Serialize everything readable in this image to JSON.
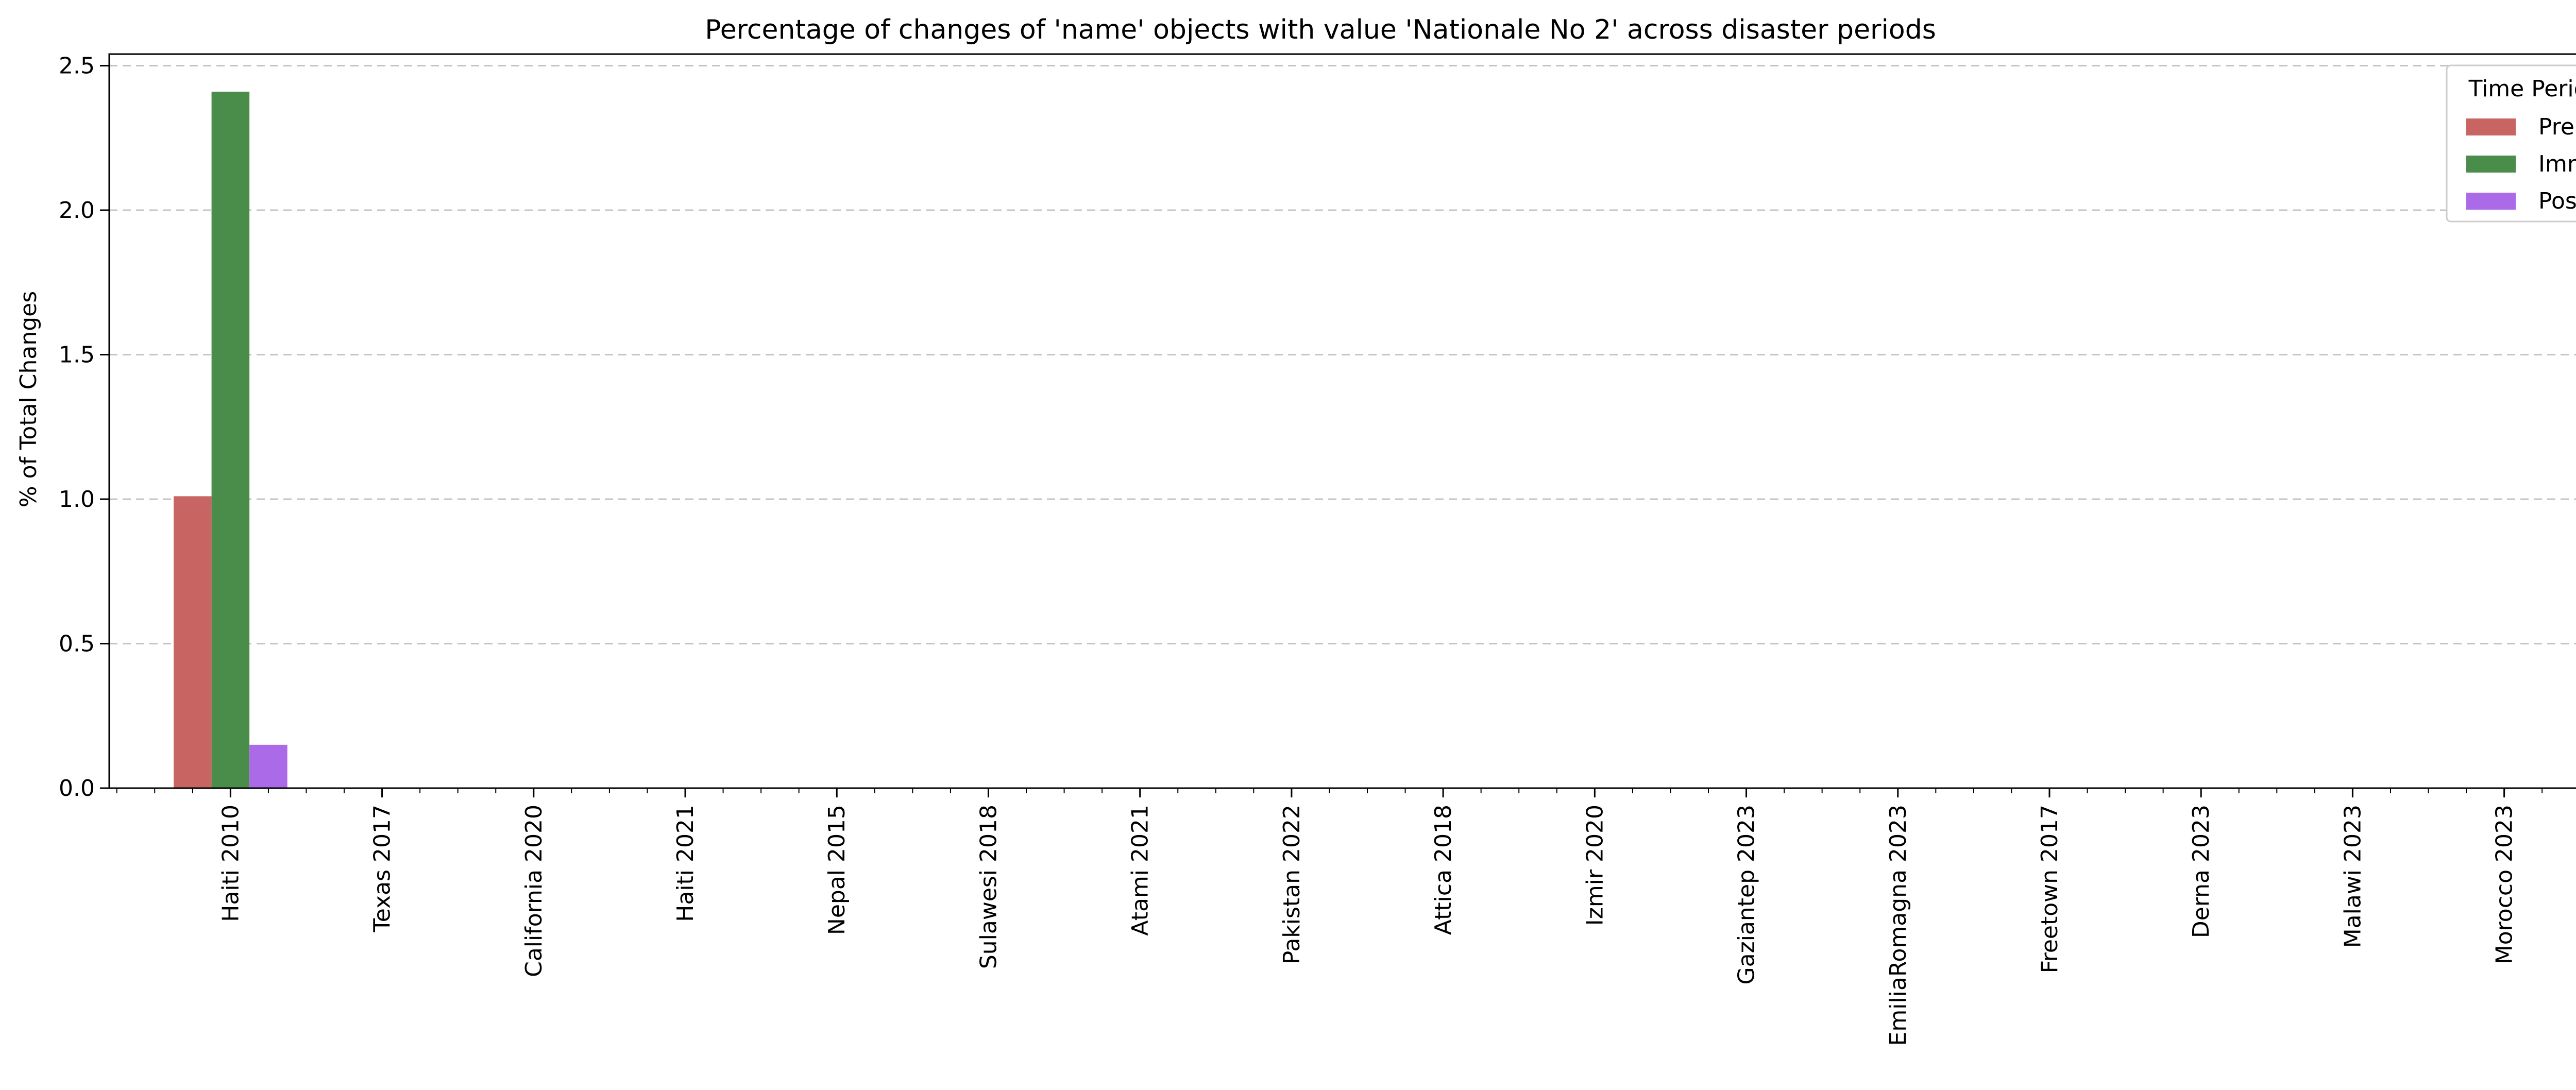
{
  "chart_data": {
    "type": "bar",
    "title": "Percentage of changes of 'name' objects with value 'Nationale No 2' across disaster periods",
    "xlabel": "",
    "ylabel": "% of Total Changes",
    "ylim": [
      0,
      2.54
    ],
    "yticks": [
      0.0,
      0.5,
      1.0,
      1.5,
      2.0,
      2.5
    ],
    "ytick_labels": [
      "0.0",
      "0.5",
      "1.0",
      "1.5",
      "2.0",
      "2.5"
    ],
    "categories": [
      "Haiti 2010",
      "Texas 2017",
      "California 2020",
      "Haiti 2021",
      "Nepal 2015",
      "Sulawesi 2018",
      "Atami 2021",
      "Pakistan 2022",
      "Attica 2018",
      "Izmir 2020",
      "Gaziantep 2023",
      "EmiliaRomagna 2023",
      "Freetown 2017",
      "Derna 2023",
      "Malawi 2023",
      "Morocco 2023"
    ],
    "series": [
      {
        "name": "Pre",
        "color": "#c86462",
        "values": [
          1.01,
          0,
          0,
          0,
          0,
          0,
          0,
          0,
          0,
          0,
          0,
          0,
          0,
          0,
          0,
          0
        ]
      },
      {
        "name": "Imm",
        "color": "#4a8c4a",
        "values": [
          2.41,
          0,
          0,
          0,
          0,
          0,
          0,
          0,
          0,
          0,
          0,
          0,
          0,
          0,
          0,
          0
        ]
      },
      {
        "name": "Post",
        "color": "#ab6ae8",
        "values": [
          0.15,
          0,
          0,
          0,
          0,
          0,
          0,
          0,
          0,
          0,
          0,
          0,
          0,
          0,
          0,
          0
        ]
      }
    ],
    "legend": {
      "title": "Time Period",
      "placement": "top-right"
    },
    "grid": {
      "major": "dashed",
      "minor": "dotted",
      "axis": "y"
    }
  }
}
